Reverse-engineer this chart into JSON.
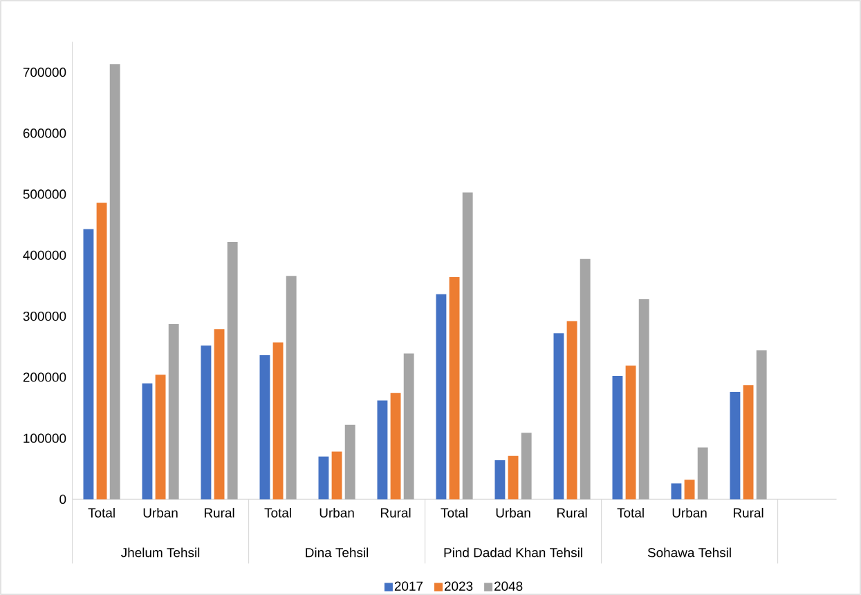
{
  "chart_data": {
    "type": "bar",
    "categories": [
      "Total",
      "Urban",
      "Rural",
      "Total",
      "Urban",
      "Rural",
      "Total",
      "Urban",
      "Rural",
      "Total",
      "Urban",
      "Rural",
      null
    ],
    "annotations": [
      "Jhelum Tehsil",
      "Dina Tehsil",
      "Pind Dadad Khan Tehsil",
      "Sohawa Tehsil"
    ],
    "series": [
      {
        "name": "2017",
        "color": "#4472c4",
        "values": [
          443000,
          190000,
          252000,
          236000,
          70000,
          162000,
          336000,
          64000,
          272000,
          202000,
          26000,
          176000,
          null
        ]
      },
      {
        "name": "2023",
        "color": "#ed7d31",
        "values": [
          486000,
          204000,
          279000,
          257000,
          78000,
          174000,
          364000,
          71000,
          292000,
          219000,
          32000,
          187000,
          null
        ]
      },
      {
        "name": "2048",
        "color": "#a5a5a5",
        "values": [
          713000,
          287000,
          422000,
          366000,
          122000,
          239000,
          503000,
          109000,
          394000,
          328000,
          85000,
          244000,
          null
        ]
      }
    ],
    "ylim": [
      0,
      750000
    ],
    "yticks": [
      0,
      100000,
      200000,
      300000,
      400000,
      500000,
      600000,
      700000
    ],
    "legend": "bottom"
  }
}
